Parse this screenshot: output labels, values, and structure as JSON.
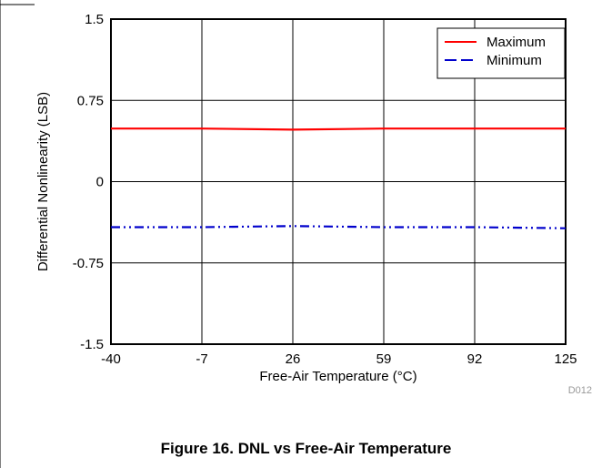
{
  "chart_data": {
    "type": "line",
    "title": "",
    "xlabel": "Free-Air Temperature (°C)",
    "ylabel": "Differential Nonlinearity (LSB)",
    "xlim": [
      -40,
      125
    ],
    "ylim": [
      -1.5,
      1.5
    ],
    "xticks": [
      "-40",
      "-7",
      "26",
      "59",
      "92",
      "125"
    ],
    "yticks": [
      "1.5",
      "0.75",
      "0",
      "-0.75",
      "-1.5"
    ],
    "grid": true,
    "legend_position": "top-right",
    "x": [
      -40,
      -7,
      26,
      59,
      92,
      125
    ],
    "series": [
      {
        "name": "Maximum",
        "color": "#ff0000",
        "dash": "solid",
        "values": [
          0.49,
          0.49,
          0.48,
          0.49,
          0.49,
          0.49
        ]
      },
      {
        "name": "Minimum",
        "color": "#0000cc",
        "dash": "dash-dot-dot",
        "values": [
          -0.42,
          -0.42,
          -0.41,
          -0.42,
          -0.42,
          -0.43
        ]
      }
    ]
  },
  "figure_id": "D012",
  "caption": "Figure 16. DNL vs Free-Air Temperature"
}
